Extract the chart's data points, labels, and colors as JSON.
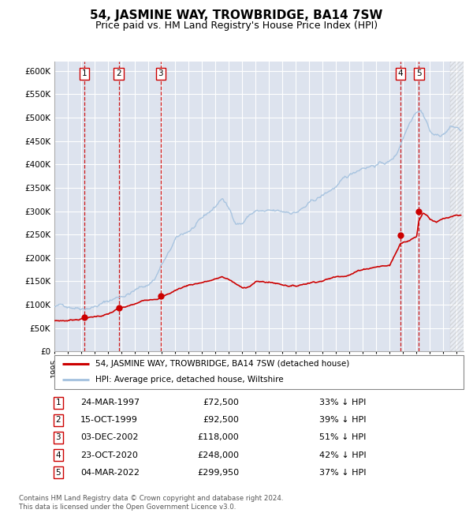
{
  "title": "54, JASMINE WAY, TROWBRIDGE, BA14 7SW",
  "subtitle": "Price paid vs. HM Land Registry's House Price Index (HPI)",
  "title_fontsize": 11,
  "subtitle_fontsize": 9,
  "plot_bg_color": "#dde3ee",
  "hpi_color": "#a8c4e0",
  "price_color": "#cc0000",
  "grid_color": "#ffffff",
  "dashed_line_color": "#cc0000",
  "ylim": [
    0,
    620000
  ],
  "yticks": [
    0,
    50000,
    100000,
    150000,
    200000,
    250000,
    300000,
    350000,
    400000,
    450000,
    500000,
    550000,
    600000
  ],
  "sales": [
    {
      "num": 1,
      "date_x": 1997.22,
      "price": 72500
    },
    {
      "num": 2,
      "date_x": 1999.79,
      "price": 92500
    },
    {
      "num": 3,
      "date_x": 2002.92,
      "price": 118000
    },
    {
      "num": 4,
      "date_x": 2020.81,
      "price": 248000
    },
    {
      "num": 5,
      "date_x": 2022.17,
      "price": 299950
    }
  ],
  "legend_house_label": "54, JASMINE WAY, TROWBRIDGE, BA14 7SW (detached house)",
  "legend_hpi_label": "HPI: Average price, detached house, Wiltshire",
  "table": [
    {
      "num": 1,
      "date": "24-MAR-1997",
      "price": "£72,500",
      "hpi": "33% ↓ HPI"
    },
    {
      "num": 2,
      "date": "15-OCT-1999",
      "price": "£92,500",
      "hpi": "39% ↓ HPI"
    },
    {
      "num": 3,
      "date": "03-DEC-2002",
      "price": "£118,000",
      "hpi": "51% ↓ HPI"
    },
    {
      "num": 4,
      "date": "23-OCT-2020",
      "price": "£248,000",
      "hpi": "42% ↓ HPI"
    },
    {
      "num": 5,
      "date": "04-MAR-2022",
      "price": "£299,950",
      "hpi": "37% ↓ HPI"
    }
  ],
  "footnote": "Contains HM Land Registry data © Crown copyright and database right 2024.\nThis data is licensed under the Open Government Licence v3.0.",
  "xlim_start": 1995.0,
  "xlim_end": 2025.5,
  "hpi_anchors": [
    [
      1995.0,
      95000
    ],
    [
      1996.0,
      97000
    ],
    [
      1997.0,
      100000
    ],
    [
      1998.0,
      108000
    ],
    [
      1999.0,
      118000
    ],
    [
      2000.0,
      130000
    ],
    [
      2001.0,
      143000
    ],
    [
      2002.0,
      155000
    ],
    [
      2002.5,
      170000
    ],
    [
      2003.0,
      200000
    ],
    [
      2003.5,
      220000
    ],
    [
      2004.0,
      248000
    ],
    [
      2005.0,
      265000
    ],
    [
      2006.0,
      285000
    ],
    [
      2007.0,
      310000
    ],
    [
      2007.5,
      330000
    ],
    [
      2008.0,
      305000
    ],
    [
      2008.5,
      278000
    ],
    [
      2009.0,
      278000
    ],
    [
      2009.5,
      295000
    ],
    [
      2010.0,
      305000
    ],
    [
      2011.0,
      298000
    ],
    [
      2012.0,
      292000
    ],
    [
      2013.0,
      295000
    ],
    [
      2014.0,
      310000
    ],
    [
      2015.0,
      325000
    ],
    [
      2016.0,
      345000
    ],
    [
      2017.0,
      362000
    ],
    [
      2018.0,
      385000
    ],
    [
      2019.0,
      395000
    ],
    [
      2020.0,
      400000
    ],
    [
      2020.5,
      415000
    ],
    [
      2021.0,
      455000
    ],
    [
      2021.5,
      490000
    ],
    [
      2021.8,
      510000
    ],
    [
      2022.0,
      520000
    ],
    [
      2022.3,
      525000
    ],
    [
      2022.8,
      500000
    ],
    [
      2023.0,
      480000
    ],
    [
      2023.5,
      470000
    ],
    [
      2024.0,
      475000
    ],
    [
      2024.5,
      490000
    ],
    [
      2025.0,
      488000
    ],
    [
      2025.3,
      482000
    ]
  ],
  "price_anchors": [
    [
      1995.0,
      65000
    ],
    [
      1996.0,
      66000
    ],
    [
      1997.22,
      72500
    ],
    [
      1998.0,
      76000
    ],
    [
      1999.0,
      82000
    ],
    [
      1999.79,
      92500
    ],
    [
      2000.5,
      96000
    ],
    [
      2001.0,
      100000
    ],
    [
      2002.0,
      110000
    ],
    [
      2002.92,
      118000
    ],
    [
      2003.5,
      125000
    ],
    [
      2004.0,
      133000
    ],
    [
      2005.0,
      145000
    ],
    [
      2006.0,
      152000
    ],
    [
      2007.0,
      158000
    ],
    [
      2007.5,
      163000
    ],
    [
      2008.0,
      158000
    ],
    [
      2008.5,
      148000
    ],
    [
      2009.0,
      138000
    ],
    [
      2009.5,
      143000
    ],
    [
      2010.0,
      153000
    ],
    [
      2011.0,
      152000
    ],
    [
      2012.0,
      148000
    ],
    [
      2013.0,
      146000
    ],
    [
      2014.0,
      155000
    ],
    [
      2015.0,
      162000
    ],
    [
      2016.0,
      170000
    ],
    [
      2017.0,
      178000
    ],
    [
      2018.0,
      190000
    ],
    [
      2019.0,
      197000
    ],
    [
      2020.0,
      200000
    ],
    [
      2020.81,
      248000
    ],
    [
      2021.0,
      252000
    ],
    [
      2021.5,
      258000
    ],
    [
      2022.0,
      265000
    ],
    [
      2022.17,
      299950
    ],
    [
      2022.5,
      318000
    ],
    [
      2022.8,
      312000
    ],
    [
      2023.0,
      305000
    ],
    [
      2023.5,
      300000
    ],
    [
      2024.0,
      305000
    ],
    [
      2025.0,
      308000
    ],
    [
      2025.3,
      307000
    ]
  ]
}
